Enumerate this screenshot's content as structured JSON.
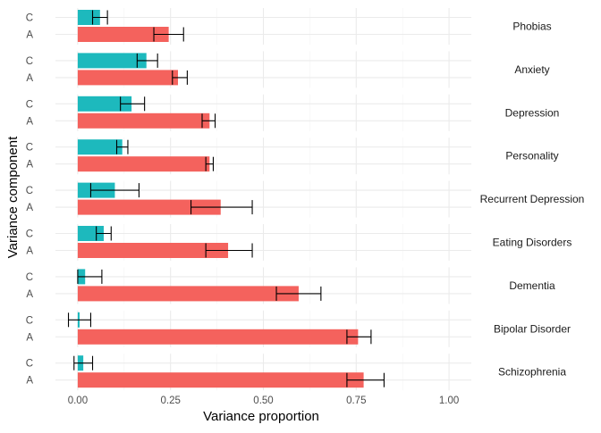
{
  "chart_data": {
    "type": "bar",
    "orientation": "horizontal",
    "faceted": true,
    "xlabel": "Variance proportion",
    "ylabel": "Variance component",
    "xlim": [
      -0.06,
      1.06
    ],
    "x_ticks": [
      0,
      0.25,
      0.5,
      0.75,
      1.0
    ],
    "x_tick_labels": [
      "0.00",
      "0.25",
      "0.50",
      "0.75",
      "1.00"
    ],
    "components": [
      "C",
      "A"
    ],
    "colors": {
      "C": "#1DB9BD",
      "A": "#F4625D"
    },
    "grid": true,
    "legend": "none",
    "facets": [
      {
        "label": "Phobias",
        "C": {
          "value": 0.06,
          "ci": [
            0.04,
            0.08
          ]
        },
        "A": {
          "value": 0.245,
          "ci": [
            0.205,
            0.285
          ]
        }
      },
      {
        "label": "Anxiety",
        "C": {
          "value": 0.185,
          "ci": [
            0.16,
            0.215
          ]
        },
        "A": {
          "value": 0.27,
          "ci": [
            0.255,
            0.295
          ]
        }
      },
      {
        "label": "Depression",
        "C": {
          "value": 0.145,
          "ci": [
            0.115,
            0.18
          ]
        },
        "A": {
          "value": 0.355,
          "ci": [
            0.335,
            0.37
          ]
        }
      },
      {
        "label": "Personality",
        "C": {
          "value": 0.12,
          "ci": [
            0.105,
            0.135
          ]
        },
        "A": {
          "value": 0.355,
          "ci": [
            0.345,
            0.365
          ]
        }
      },
      {
        "label": "Recurrent Depression",
        "C": {
          "value": 0.1,
          "ci": [
            0.035,
            0.165
          ]
        },
        "A": {
          "value": 0.385,
          "ci": [
            0.305,
            0.47
          ]
        }
      },
      {
        "label": "Eating Disorders",
        "C": {
          "value": 0.07,
          "ci": [
            0.05,
            0.09
          ]
        },
        "A": {
          "value": 0.405,
          "ci": [
            0.345,
            0.47
          ]
        }
      },
      {
        "label": "Dementia",
        "C": {
          "value": 0.02,
          "ci": [
            0.0,
            0.065
          ]
        },
        "A": {
          "value": 0.595,
          "ci": [
            0.535,
            0.655
          ]
        }
      },
      {
        "label": "Bipolar Disorder",
        "C": {
          "value": 0.005,
          "ci": [
            -0.025,
            0.035
          ]
        },
        "A": {
          "value": 0.755,
          "ci": [
            0.725,
            0.79
          ]
        }
      },
      {
        "label": "Schizophrenia",
        "C": {
          "value": 0.015,
          "ci": [
            -0.01,
            0.04
          ]
        },
        "A": {
          "value": 0.77,
          "ci": [
            0.725,
            0.825
          ]
        }
      }
    ]
  }
}
